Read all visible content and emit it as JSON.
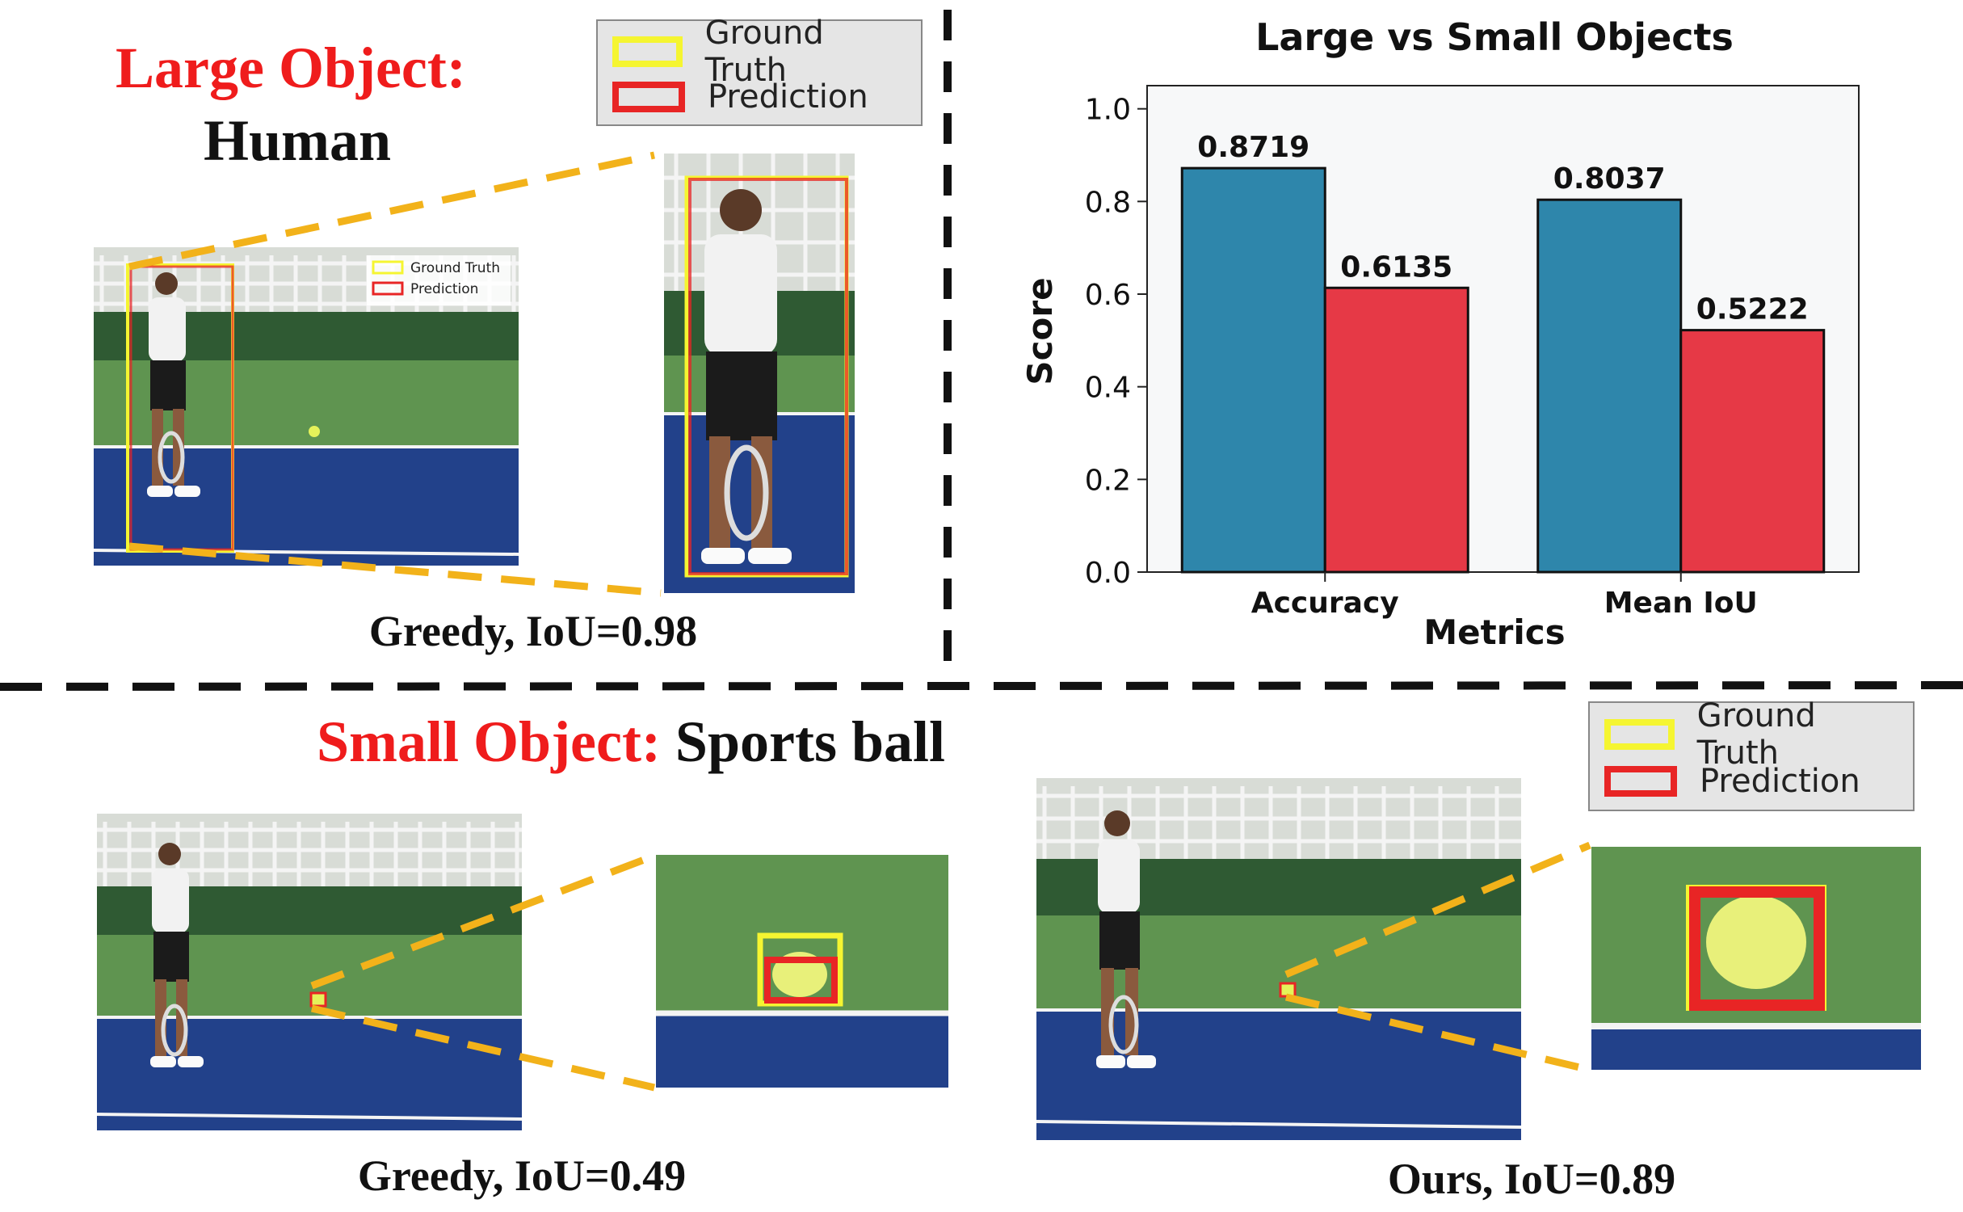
{
  "legend": {
    "ground_truth": "Ground Truth",
    "prediction": "Prediction"
  },
  "top_left": {
    "title_red": "Large Object:",
    "title_black": "Human",
    "caption": "Greedy, IoU=0.98"
  },
  "bottom": {
    "title_red": "Small Object:",
    "title_black": "Sports ball",
    "caption_left": "Greedy, IoU=0.49",
    "caption_right": "Ours, IoU=0.89"
  },
  "colors": {
    "accent_red": "#ef1c1c",
    "ground_truth": "#f5f531",
    "prediction": "#e82525",
    "dashed_zoom": "#f2b21a",
    "court_green": "#5f9450",
    "court_blue": "#22418a"
  },
  "chart_data": {
    "type": "bar",
    "title": "Large vs Small Objects",
    "xlabel": "Metrics",
    "ylabel": "Score",
    "categories": [
      "Accuracy",
      "Mean IoU"
    ],
    "series": [
      {
        "values": [
          0.8719,
          0.8037
        ],
        "color": "#2e86ab"
      },
      {
        "values": [
          0.6135,
          0.5222
        ],
        "color": "#e63946"
      }
    ],
    "value_labels": [
      [
        "0.8719",
        "0.8037"
      ],
      [
        "0.6135",
        "0.5222"
      ]
    ],
    "ylim": [
      0,
      1.05
    ],
    "yticks": [
      "0.0",
      "0.2",
      "0.4",
      "0.6",
      "0.8",
      "1.0"
    ],
    "grid": false,
    "legend": "none"
  }
}
